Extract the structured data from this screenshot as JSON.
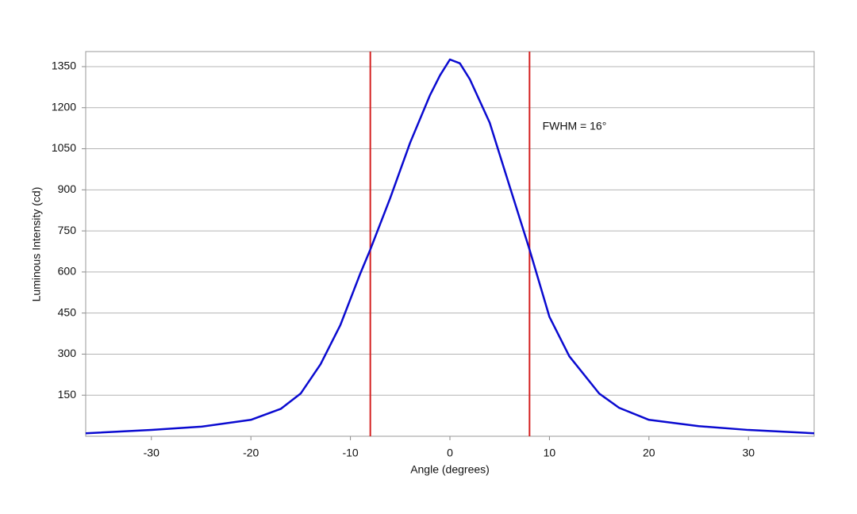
{
  "chart_data": {
    "type": "line",
    "xlabel": "Angle (degrees)",
    "ylabel": "Luminous Intensity (cd)",
    "x": [
      -36.6,
      -30,
      -25,
      -20,
      -17,
      -15,
      -13,
      -11,
      -9,
      -8,
      -6,
      -4,
      -2,
      -1,
      0,
      1,
      2,
      4,
      6,
      8,
      10,
      12,
      15,
      17,
      20,
      25,
      30,
      36.6
    ],
    "series": [
      {
        "color": "#0a0ad0",
        "values": [
          11,
          23,
          35,
          60,
          100,
          156,
          263,
          407,
          595,
          682,
          870,
          1072,
          1246,
          1318,
          1376,
          1362,
          1304,
          1145,
          913,
          682,
          436,
          292,
          156,
          104,
          60,
          37,
          23,
          11
        ]
      }
    ],
    "xlim": [
      -36.6,
      36.6
    ],
    "ylim": [
      0,
      1405
    ],
    "xticks": [
      -30,
      -20,
      -10,
      0,
      10,
      20,
      30
    ],
    "yticks": [
      150,
      300,
      450,
      600,
      750,
      900,
      1050,
      1200,
      1350
    ],
    "grid": true,
    "vlines": [
      {
        "value": -8,
        "color": "#d42020"
      },
      {
        "value": 8,
        "color": "#d42020"
      }
    ],
    "annotations": [
      {
        "text": "FWHM = 16°",
        "x": 9.3,
        "y": 1130
      }
    ]
  }
}
